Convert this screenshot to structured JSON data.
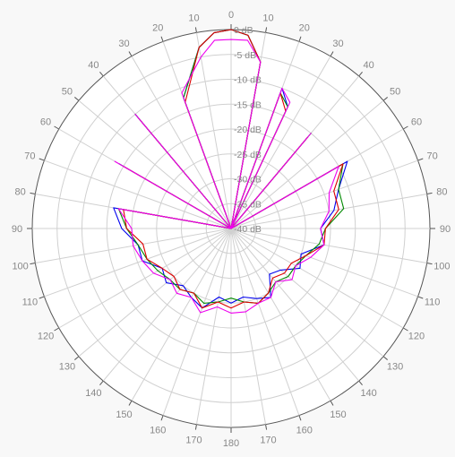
{
  "chart_data": {
    "type": "polar-line",
    "title": "",
    "angle_labels": [
      "0",
      "10",
      "20",
      "30",
      "40",
      "50",
      "60",
      "70",
      "80",
      "90",
      "100",
      "110",
      "120",
      "130",
      "140",
      "150",
      "160",
      "170",
      "180",
      "170",
      "160",
      "150",
      "140",
      "130",
      "120",
      "110",
      "100",
      "90",
      "80",
      "70",
      "60",
      "50",
      "40",
      "30",
      "20",
      "10"
    ],
    "radial_unit": "dB",
    "rlim": [
      -40,
      0
    ],
    "ring_labels": [
      "0 dB",
      "-5 dB",
      "-10 dB",
      "-15 dB",
      "-20 dB",
      "-25 dB",
      "-30 dB",
      "-35 dB",
      "-40 dB"
    ],
    "ring_values": [
      0,
      -5,
      -10,
      -15,
      -20,
      -25,
      -30,
      -35,
      -40
    ],
    "grid": true,
    "angular_grid_step_deg": 10,
    "series": [
      {
        "color": "#0000ee",
        "points": [
          [
            -180,
            -25
          ],
          [
            -170,
            -26
          ],
          [
            -160,
            -23
          ],
          [
            -150,
            -24
          ],
          [
            -140,
            -25
          ],
          [
            -130,
            -23
          ],
          [
            -120,
            -24
          ],
          [
            -110,
            -21
          ],
          [
            -100,
            -21
          ],
          [
            -90,
            -18
          ],
          [
            -80,
            -16
          ],
          [
            -70,
            -40
          ],
          [
            -60,
            -14
          ],
          [
            -50,
            -40
          ],
          [
            -40,
            -10
          ],
          [
            -30,
            -40
          ],
          [
            -20,
            -12
          ],
          [
            -10,
            -3
          ],
          [
            -5,
            -0.5
          ],
          [
            0,
            0
          ],
          [
            5,
            -1
          ],
          [
            10,
            -6
          ],
          [
            15,
            -40
          ],
          [
            20,
            -10
          ],
          [
            25,
            -13
          ],
          [
            30,
            -40
          ],
          [
            40,
            -16
          ],
          [
            50,
            -40
          ],
          [
            60,
            -13
          ],
          [
            70,
            -17
          ],
          [
            80,
            -19
          ],
          [
            90,
            -22
          ],
          [
            100,
            -21
          ],
          [
            110,
            -25
          ],
          [
            120,
            -24
          ],
          [
            130,
            -27
          ],
          [
            140,
            -28
          ],
          [
            150,
            -24
          ],
          [
            160,
            -25
          ],
          [
            170,
            -26
          ],
          [
            180,
            -25
          ]
        ]
      },
      {
        "color": "#008800",
        "points": [
          [
            -180,
            -26
          ],
          [
            -170,
            -25
          ],
          [
            -160,
            -24
          ],
          [
            -150,
            -25
          ],
          [
            -140,
            -24
          ],
          [
            -130,
            -24
          ],
          [
            -120,
            -23
          ],
          [
            -110,
            -22
          ],
          [
            -100,
            -21
          ],
          [
            -90,
            -19
          ],
          [
            -80,
            -17
          ],
          [
            -70,
            -40
          ],
          [
            -60,
            -14
          ],
          [
            -50,
            -40
          ],
          [
            -40,
            -10
          ],
          [
            -30,
            -40
          ],
          [
            -20,
            -12
          ],
          [
            -10,
            -3
          ],
          [
            -5,
            -0.5
          ],
          [
            0,
            0
          ],
          [
            5,
            -1
          ],
          [
            10,
            -6
          ],
          [
            15,
            -40
          ],
          [
            20,
            -11
          ],
          [
            25,
            -13
          ],
          [
            30,
            -40
          ],
          [
            40,
            -15
          ],
          [
            50,
            -40
          ],
          [
            60,
            -14
          ],
          [
            70,
            -17
          ],
          [
            80,
            -17
          ],
          [
            90,
            -21
          ],
          [
            100,
            -22
          ],
          [
            110,
            -24
          ],
          [
            120,
            -25
          ],
          [
            130,
            -25
          ],
          [
            140,
            -26
          ],
          [
            150,
            -25
          ],
          [
            160,
            -24
          ],
          [
            170,
            -25
          ],
          [
            180,
            -26
          ]
        ]
      },
      {
        "color": "#dd0000",
        "points": [
          [
            -180,
            -24
          ],
          [
            -170,
            -25
          ],
          [
            -160,
            -23
          ],
          [
            -150,
            -25
          ],
          [
            -140,
            -24
          ],
          [
            -130,
            -25
          ],
          [
            -120,
            -24
          ],
          [
            -110,
            -22
          ],
          [
            -100,
            -22
          ],
          [
            -90,
            -19
          ],
          [
            -80,
            -18
          ],
          [
            -70,
            -40
          ],
          [
            -60,
            -15
          ],
          [
            -50,
            -40
          ],
          [
            -40,
            -11
          ],
          [
            -30,
            -40
          ],
          [
            -20,
            -13
          ],
          [
            -10,
            -3
          ],
          [
            -5,
            -0.5
          ],
          [
            0,
            0
          ],
          [
            5,
            -1
          ],
          [
            10,
            -6
          ],
          [
            15,
            -40
          ],
          [
            20,
            -11
          ],
          [
            25,
            -14
          ],
          [
            30,
            -40
          ],
          [
            40,
            -16
          ],
          [
            50,
            -40
          ],
          [
            60,
            -14
          ],
          [
            70,
            -18
          ],
          [
            80,
            -18
          ],
          [
            90,
            -21
          ],
          [
            100,
            -21
          ],
          [
            110,
            -24
          ],
          [
            120,
            -26
          ],
          [
            130,
            -26
          ],
          [
            140,
            -27
          ],
          [
            150,
            -25
          ],
          [
            160,
            -24
          ],
          [
            170,
            -25
          ],
          [
            180,
            -24
          ]
        ]
      },
      {
        "color": "#ee00ee",
        "points": [
          [
            -180,
            -23
          ],
          [
            -170,
            -24
          ],
          [
            -160,
            -22
          ],
          [
            -150,
            -24
          ],
          [
            -140,
            -23
          ],
          [
            -130,
            -24
          ],
          [
            -120,
            -22
          ],
          [
            -110,
            -21
          ],
          [
            -100,
            -20
          ],
          [
            -90,
            -20
          ],
          [
            -80,
            -17
          ],
          [
            -70,
            -40
          ],
          [
            -60,
            -13
          ],
          [
            -50,
            -40
          ],
          [
            -40,
            -10
          ],
          [
            -30,
            -40
          ],
          [
            -20,
            -11
          ],
          [
            -10,
            -5
          ],
          [
            -5,
            -2
          ],
          [
            0,
            -2
          ],
          [
            5,
            -2
          ],
          [
            10,
            -6
          ],
          [
            15,
            -40
          ],
          [
            20,
            -10
          ],
          [
            25,
            -12
          ],
          [
            30,
            -40
          ],
          [
            40,
            -15
          ],
          [
            50,
            -40
          ],
          [
            60,
            -15
          ],
          [
            70,
            -19
          ],
          [
            80,
            -20
          ],
          [
            90,
            -22
          ],
          [
            100,
            -21
          ],
          [
            110,
            -23
          ],
          [
            120,
            -25
          ],
          [
            130,
            -24
          ],
          [
            140,
            -26
          ],
          [
            150,
            -24
          ],
          [
            160,
            -24
          ],
          [
            170,
            -23
          ],
          [
            180,
            -23
          ]
        ]
      }
    ]
  }
}
